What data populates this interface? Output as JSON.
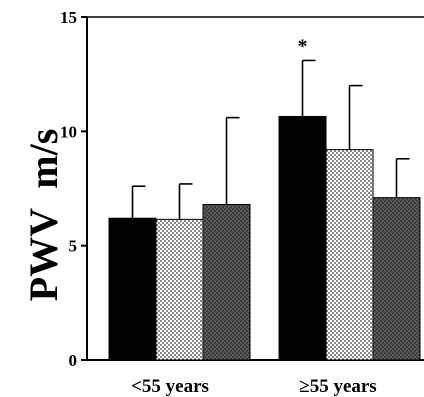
{
  "chart_data": {
    "type": "bar",
    "categories": [
      "<55  years",
      "≥55  years"
    ],
    "series": [
      {
        "values": [
          6.2,
          10.65
        ],
        "errors": [
          1.4,
          2.45
        ],
        "fill": "solid-black"
      },
      {
        "values": [
          6.15,
          9.2
        ],
        "errors": [
          1.55,
          2.8
        ],
        "fill": "white-dotted"
      },
      {
        "values": [
          6.8,
          7.1
        ],
        "errors": [
          3.8,
          1.7
        ],
        "fill": "gray-dotted"
      }
    ],
    "ylabel": "PWV  m/s",
    "xlabel": "",
    "ylim": [
      0,
      15
    ],
    "yticks": [
      0,
      5,
      10,
      15
    ],
    "annotations": [
      {
        "text": "*",
        "category": 1,
        "series": 0
      }
    ],
    "grid": false,
    "legend": "none"
  },
  "colors": {
    "black": "#000000",
    "dark_gray": "#5a5a5a"
  }
}
